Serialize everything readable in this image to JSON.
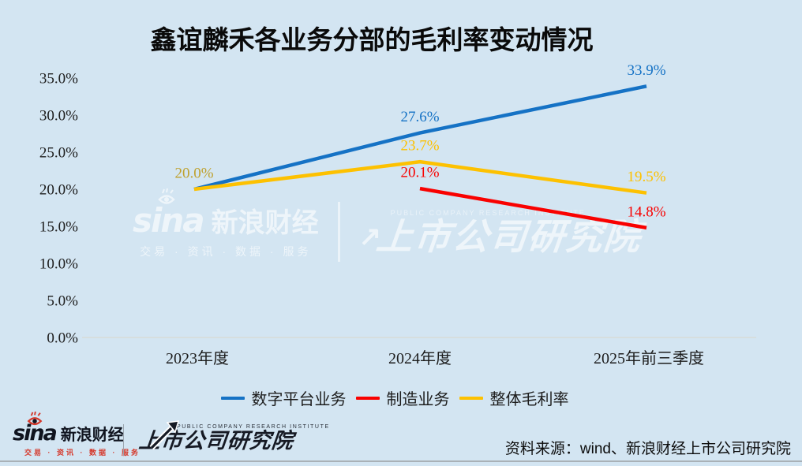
{
  "chart_data": {
    "type": "line",
    "title": "鑫谊麟禾各业务分部的毛利率变动情况",
    "categories": [
      "2023年度",
      "2024年度",
      "2025年前三季度"
    ],
    "ylim": [
      0,
      35
    ],
    "grid": false,
    "legend_position": "bottom",
    "y_ticks": [
      {
        "value": 35,
        "label": "35.0%"
      },
      {
        "value": 30,
        "label": "30.0%"
      },
      {
        "value": 25,
        "label": "25.0%"
      },
      {
        "value": 20,
        "label": "20.0%"
      },
      {
        "value": 15,
        "label": "15.0%"
      },
      {
        "value": 10,
        "label": "10.0%"
      },
      {
        "value": 5,
        "label": "5.0%"
      },
      {
        "value": 0,
        "label": "0.0%"
      }
    ],
    "series": [
      {
        "name": "数字平台业务",
        "color": "#1572c5",
        "values": [
          20.0,
          27.6,
          33.9
        ],
        "point_labels": [
          "",
          "27.6%",
          "33.9%"
        ],
        "point_label_colors": [
          "",
          "#1572c5",
          "#1572c5"
        ]
      },
      {
        "name": "制造业务",
        "color": "#f90100",
        "values": [
          null,
          20.1,
          14.8
        ],
        "point_labels": [
          "",
          "20.1%",
          "14.8%"
        ],
        "point_label_colors": [
          "",
          "#f90100",
          "#f90100"
        ]
      },
      {
        "name": "整体毛利率",
        "color": "#fdc101",
        "values": [
          20.0,
          23.7,
          19.5
        ],
        "point_labels": [
          "20.0%",
          "23.7%",
          "19.5%"
        ],
        "point_label_colors": [
          "#bfa12e",
          "#fdc101",
          "#fdc101"
        ]
      }
    ],
    "axis_color": "#d8d9d3",
    "tick_text_color": "#1d1d1d"
  },
  "watermark": {
    "sina": "sina",
    "sina_cn": "新浪财经",
    "tagline": "交易 · 资讯 · 数据 · 服务",
    "institute_en": "PUBLIC COMPANY RESEARCH INSTITUTE",
    "institute": "上市公司研究院",
    "arrow_glyph": "↗"
  },
  "footer": {
    "sina": "sina",
    "sina_cn": "新浪财经",
    "tagline": "交易 · 资讯 · 数据 · 服务",
    "institute_en": "PUBLIC COMPANY RESEARCH INSTITUTE",
    "institute": "上市公司研究院",
    "source": "资料来源：wind、新浪财经上市公司研究院"
  }
}
